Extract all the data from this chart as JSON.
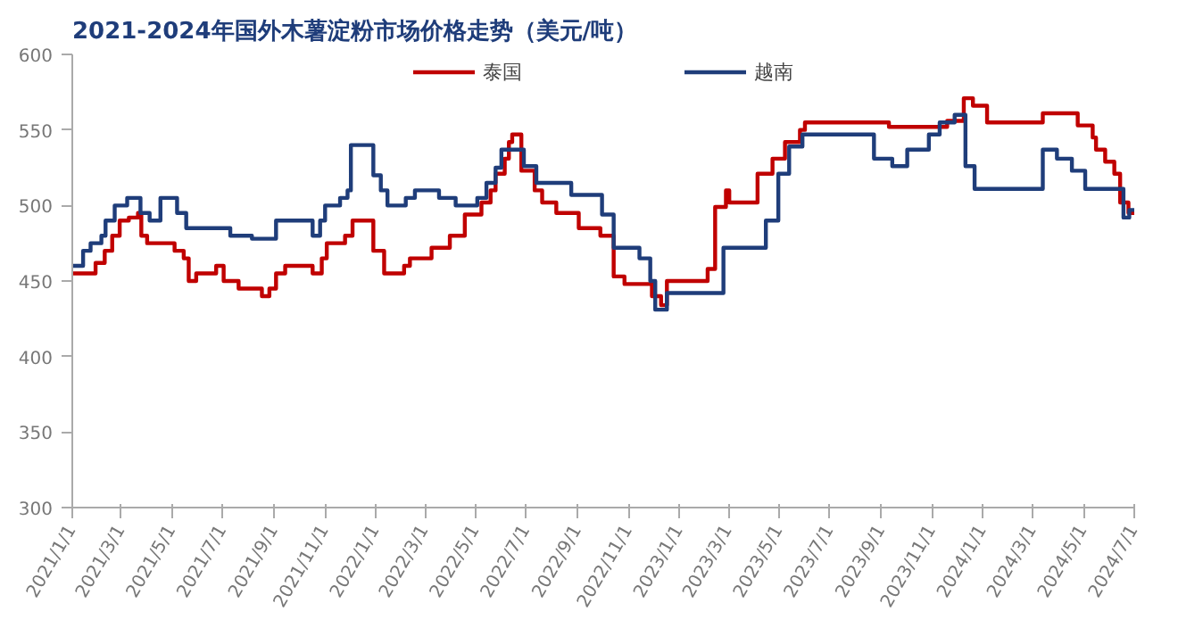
{
  "chart_data": {
    "type": "step",
    "title": "2021-2024年国外木薯淀粉市场价格走势（美元/吨）",
    "ylim": [
      300,
      600
    ],
    "yticks": [
      300,
      350,
      400,
      450,
      500,
      550,
      600
    ],
    "xlim": [
      "2021-01-01",
      "2024-07-01"
    ],
    "xticks": [
      {
        "value": "2021-01-01",
        "label": "2021/1/1"
      },
      {
        "value": "2021-03-01",
        "label": "2021/3/1"
      },
      {
        "value": "2021-05-01",
        "label": "2021/5/1"
      },
      {
        "value": "2021-07-01",
        "label": "2021/7/1"
      },
      {
        "value": "2021-09-01",
        "label": "2021/9/1"
      },
      {
        "value": "2021-11-01",
        "label": "2021/11/1"
      },
      {
        "value": "2022-01-01",
        "label": "2022/1/1"
      },
      {
        "value": "2022-03-01",
        "label": "2022/3/1"
      },
      {
        "value": "2022-05-01",
        "label": "2022/5/1"
      },
      {
        "value": "2022-07-01",
        "label": "2022/7/1"
      },
      {
        "value": "2022-09-01",
        "label": "2022/9/1"
      },
      {
        "value": "2022-11-01",
        "label": "2022/11/1"
      },
      {
        "value": "2023-01-01",
        "label": "2023/1/1"
      },
      {
        "value": "2023-03-01",
        "label": "2023/3/1"
      },
      {
        "value": "2023-05-01",
        "label": "2023/5/1"
      },
      {
        "value": "2023-07-01",
        "label": "2023/7/1"
      },
      {
        "value": "2023-09-01",
        "label": "2023/9/1"
      },
      {
        "value": "2023-11-01",
        "label": "2023/11/1"
      },
      {
        "value": "2024-01-01",
        "label": "2024/1/1"
      },
      {
        "value": "2024-03-01",
        "label": "2024/3/1"
      },
      {
        "value": "2024-05-01",
        "label": "2024/5/1"
      },
      {
        "value": "2024-07-01",
        "label": "2024/7/1"
      }
    ],
    "grid": false,
    "legend": "top",
    "line_style": "solid",
    "series": [
      {
        "name": "泰国",
        "color": "#c00000",
        "x": [
          "2021-01-01",
          "2021-01-29",
          "2021-02-09",
          "2021-02-18",
          "2021-02-27",
          "2021-03-10",
          "2021-03-21",
          "2021-03-25",
          "2021-04-01",
          "2021-05-04",
          "2021-05-15",
          "2021-05-21",
          "2021-05-30",
          "2021-06-23",
          "2021-07-02",
          "2021-07-20",
          "2021-08-17",
          "2021-08-26",
          "2021-09-03",
          "2021-09-14",
          "2021-10-17",
          "2021-10-28",
          "2021-11-03",
          "2021-11-25",
          "2021-12-04",
          "2021-12-29",
          "2022-01-11",
          "2022-02-04",
          "2022-02-11",
          "2022-03-09",
          "2022-03-31",
          "2022-04-18",
          "2022-05-08",
          "2022-05-19",
          "2022-05-25",
          "2022-06-05",
          "2022-06-10",
          "2022-06-14",
          "2022-06-25",
          "2022-07-11",
          "2022-07-20",
          "2022-08-06",
          "2022-09-02",
          "2022-09-28",
          "2022-10-14",
          "2022-10-27",
          "2022-11-29",
          "2022-12-10",
          "2022-12-17",
          "2023-02-04",
          "2023-02-13",
          "2023-02-26",
          "2023-03-02",
          "2023-04-05",
          "2023-04-23",
          "2023-05-08",
          "2023-05-26",
          "2023-06-01",
          "2023-09-10",
          "2023-11-19",
          "2023-12-09",
          "2023-12-20",
          "2024-01-06",
          "2024-03-13",
          "2024-04-24",
          "2024-05-12",
          "2024-05-16",
          "2024-05-27",
          "2024-06-07",
          "2024-06-14",
          "2024-06-24",
          "2024-07-01"
        ],
        "values": [
          455,
          462,
          470,
          480,
          490,
          492,
          495,
          480,
          475,
          470,
          465,
          450,
          455,
          460,
          450,
          445,
          440,
          445,
          455,
          460,
          455,
          465,
          475,
          480,
          490,
          470,
          455,
          460,
          465,
          472,
          480,
          494,
          502,
          510,
          521,
          531,
          542,
          547,
          523,
          510,
          502,
          495,
          485,
          480,
          453,
          448,
          440,
          434,
          450,
          458,
          499,
          510,
          502,
          521,
          531,
          542,
          550,
          555,
          552,
          556,
          571,
          566,
          555,
          561,
          553,
          545,
          537,
          529,
          521,
          502,
          495,
          495
        ]
      },
      {
        "name": "越南",
        "color": "#1f3d7a",
        "x": [
          "2021-01-01",
          "2021-01-14",
          "2021-01-23",
          "2021-02-05",
          "2021-02-10",
          "2021-02-21",
          "2021-03-08",
          "2021-03-24",
          "2021-04-04",
          "2021-04-17",
          "2021-05-07",
          "2021-05-18",
          "2021-07-10",
          "2021-08-05",
          "2021-09-03",
          "2021-10-17",
          "2021-10-26",
          "2021-11-01",
          "2021-11-19",
          "2021-11-28",
          "2021-12-02",
          "2021-12-29",
          "2022-01-07",
          "2022-01-15",
          "2022-02-06",
          "2022-02-17",
          "2022-03-18",
          "2022-04-07",
          "2022-05-03",
          "2022-05-14",
          "2022-05-25",
          "2022-06-01",
          "2022-06-28",
          "2022-07-13",
          "2022-08-24",
          "2022-09-30",
          "2022-10-14",
          "2022-11-14",
          "2022-11-27",
          "2022-12-03",
          "2022-12-17",
          "2023-02-23",
          "2023-04-15",
          "2023-04-30",
          "2023-05-13",
          "2023-05-29",
          "2023-08-23",
          "2023-09-14",
          "2023-10-02",
          "2023-10-28",
          "2023-11-10",
          "2023-11-28",
          "2023-12-11",
          "2023-12-22",
          "2024-03-13",
          "2024-03-30",
          "2024-04-17",
          "2024-05-03",
          "2024-06-18",
          "2024-06-25",
          "2024-07-01"
        ],
        "values": [
          460,
          470,
          475,
          480,
          490,
          500,
          505,
          495,
          490,
          505,
          495,
          485,
          480,
          478,
          490,
          480,
          490,
          500,
          505,
          510,
          540,
          520,
          510,
          500,
          505,
          510,
          505,
          500,
          505,
          515,
          525,
          537,
          526,
          515,
          507,
          494,
          472,
          465,
          450,
          431,
          442,
          472,
          490,
          521,
          539,
          547,
          531,
          526,
          537,
          547,
          555,
          560,
          526,
          511,
          537,
          531,
          523,
          511,
          492,
          497,
          497
        ]
      }
    ]
  }
}
